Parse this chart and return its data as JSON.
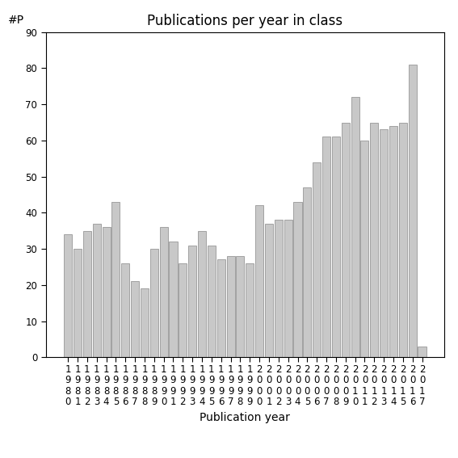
{
  "title": "Publications per year in class",
  "xlabel": "Publication year",
  "ylabel": "#P",
  "years": [
    "1980",
    "1981",
    "1982",
    "1983",
    "1984",
    "1985",
    "1986",
    "1987",
    "1988",
    "1989",
    "1990",
    "1991",
    "1992",
    "1993",
    "1994",
    "1995",
    "1996",
    "1997",
    "1998",
    "1999",
    "2000",
    "2001",
    "2002",
    "2003",
    "2004",
    "2005",
    "2006",
    "2007",
    "2008",
    "2009",
    "2010",
    "2011",
    "2012",
    "2013",
    "2014",
    "2015",
    "2016",
    "2017"
  ],
  "values": [
    34,
    30,
    35,
    37,
    36,
    43,
    26,
    21,
    19,
    30,
    36,
    32,
    26,
    31,
    35,
    31,
    27,
    28,
    28,
    26,
    42,
    37,
    38,
    38,
    43,
    47,
    54,
    61,
    61,
    65,
    72,
    60,
    65,
    63,
    64,
    65,
    81,
    3
  ],
  "bar_color": "#c8c8c8",
  "bar_edgecolor": "#888888",
  "ylim": [
    0,
    90
  ],
  "yticks": [
    0,
    10,
    20,
    30,
    40,
    50,
    60,
    70,
    80,
    90
  ],
  "background_color": "#ffffff",
  "title_fontsize": 12,
  "axis_fontsize": 10,
  "tick_fontsize": 8.5
}
